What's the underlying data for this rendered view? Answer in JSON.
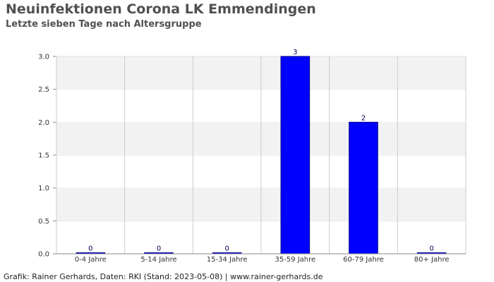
{
  "title": "Neuinfektionen Corona LK Emmendingen",
  "subtitle": "Letzte sieben Tage nach Altersgruppe",
  "footer": "Grafik: Rainer Gerhards, Daten: RKI (Stand: 2023-05-08) | www.rainer-gerhards.de",
  "chart_data": {
    "type": "bar",
    "categories": [
      "0-4 Jahre",
      "5-14 Jahre",
      "15-34 Jahre",
      "35-59 Jahre",
      "60-79 Jahre",
      "80+ Jahre"
    ],
    "values": [
      0,
      0,
      0,
      3,
      2,
      0
    ],
    "data_labels": [
      "0",
      "0",
      "0",
      "3",
      "2",
      "0"
    ],
    "y_ticks": [
      "0.0",
      "0.5",
      "1.0",
      "1.5",
      "2.0",
      "2.5",
      "3.0"
    ],
    "ylim": [
      0,
      3
    ],
    "grid": true,
    "colors": {
      "bar": "#0000ff",
      "bar_edge": "#00008b",
      "band": "#f2f2f2",
      "grid": "#cccccc",
      "axis": "#888888"
    }
  }
}
